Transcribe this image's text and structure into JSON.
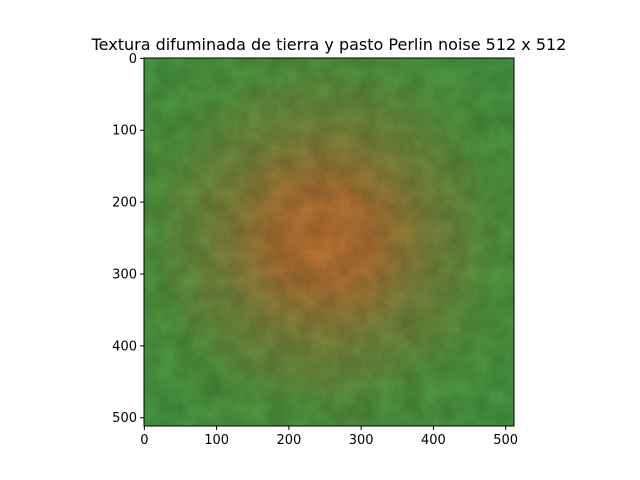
{
  "chart_data": {
    "type": "heatmap",
    "title": "Textura difuminada de tierra y pasto Perlin noise 512 x 512",
    "xlabel": "",
    "ylabel": "",
    "image_size": [
      512,
      512
    ],
    "xlim": [
      0,
      512
    ],
    "ylim": [
      512,
      0
    ],
    "x_ticks": [
      0,
      100,
      200,
      300,
      400,
      500
    ],
    "y_ticks": [
      0,
      100,
      200,
      300,
      400,
      500
    ],
    "x_tick_labels": [
      "0",
      "100",
      "200",
      "300",
      "400",
      "500"
    ],
    "y_tick_labels": [
      "0",
      "100",
      "200",
      "300",
      "400",
      "500"
    ],
    "grid": false,
    "gradient": {
      "center": [
        250,
        250
      ],
      "center_color": "#c77a34",
      "edge_color": "#47a047",
      "mid_color": "#7c8a3e"
    }
  }
}
